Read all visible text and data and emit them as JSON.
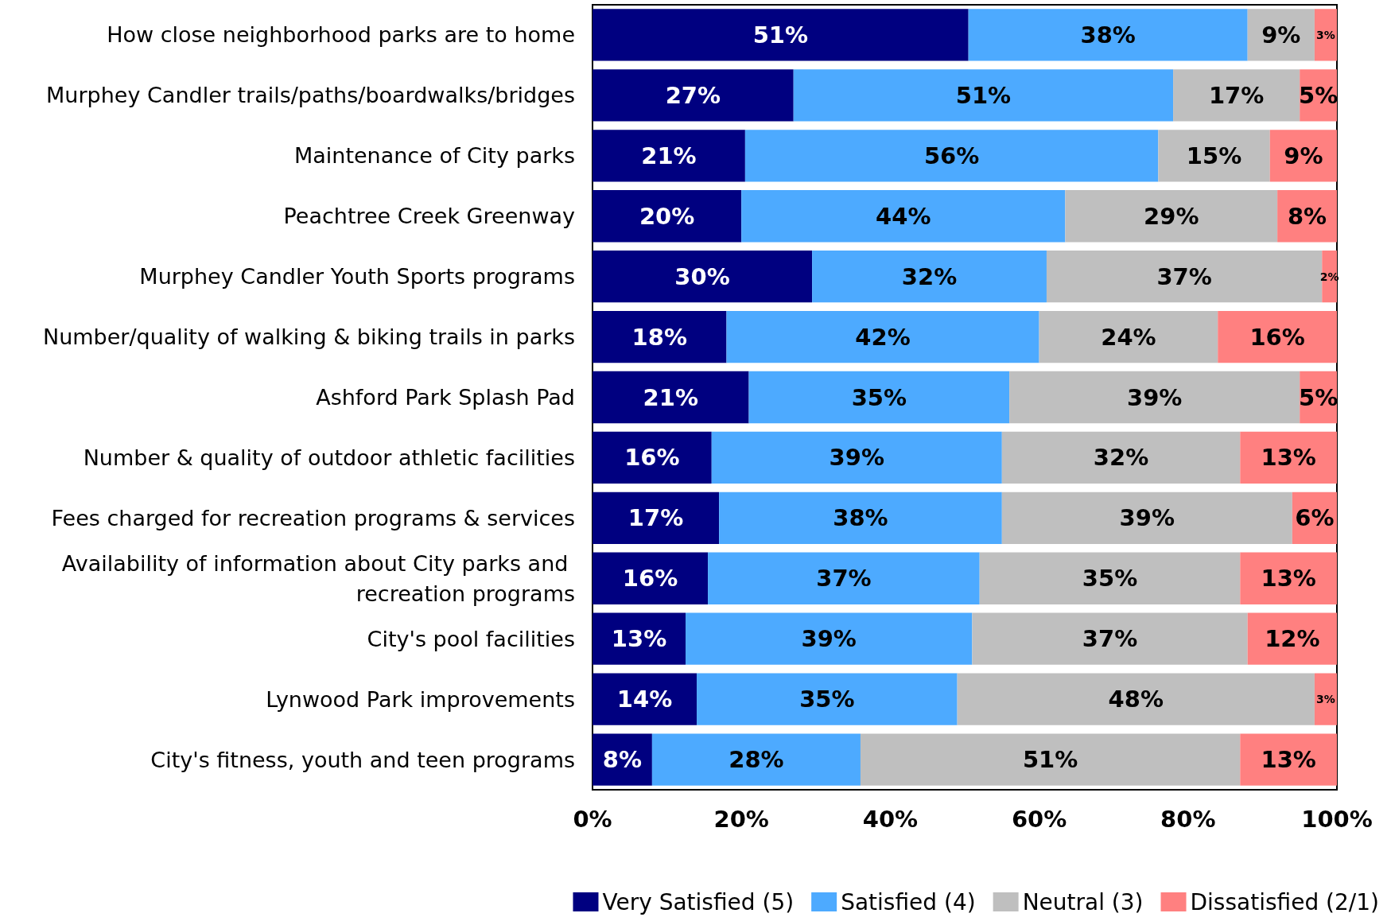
{
  "chart_data": {
    "type": "bar",
    "orientation": "horizontal",
    "stacked": true,
    "categories": [
      "How close neighborhood parks are to home",
      "Murphey Candler trails/paths/boardwalks/bridges",
      "Maintenance of City parks",
      "Peachtree Creek Greenway",
      "Murphey Candler Youth Sports programs",
      "Number/quality of walking & biking trails in parks",
      "Ashford Park Splash Pad",
      "Number & quality of outdoor athletic facilities",
      "Fees charged for recreation programs & services",
      "Availability of information about City parks and recreation programs",
      "City's pool facilities",
      "Lynwood Park improvements",
      "City's fitness, youth and teen programs"
    ],
    "series": [
      {
        "name": "Very Satisfied (5)",
        "color": "#000080",
        "values": [
          50.5,
          27,
          20.5,
          20,
          29.5,
          18,
          21,
          16,
          17,
          15.5,
          12.5,
          14,
          8
        ],
        "value_labels": [
          "51%",
          "27%",
          "21%",
          "20%",
          "30%",
          "18%",
          "21%",
          "16%",
          "17%",
          "16%",
          "13%",
          "14%",
          "8%"
        ]
      },
      {
        "name": "Satisfied (4)",
        "color": "#4daaff",
        "values": [
          37.5,
          51,
          55.5,
          43.5,
          31.5,
          42,
          35,
          39,
          38,
          36.5,
          38.5,
          35,
          28
        ],
        "value_labels": [
          "38%",
          "51%",
          "56%",
          "44%",
          "32%",
          "42%",
          "35%",
          "39%",
          "38%",
          "37%",
          "39%",
          "35%",
          "28%"
        ]
      },
      {
        "name": "Neutral (3)",
        "color": "#bfbfbf",
        "values": [
          9,
          17,
          15,
          28.5,
          37,
          24,
          39,
          32,
          39,
          35,
          37,
          48,
          51
        ],
        "value_labels": [
          "9%",
          "17%",
          "15%",
          "29%",
          "37%",
          "24%",
          "39%",
          "32%",
          "39%",
          "35%",
          "37%",
          "48%",
          "51%"
        ]
      },
      {
        "name": "Dissatisfied (2/1)",
        "color": "#ff8080",
        "values": [
          3,
          5,
          9,
          8,
          2,
          16,
          5,
          13,
          6,
          13,
          12,
          3,
          13
        ],
        "value_labels": [
          "3%",
          "5%",
          "9%",
          "8%",
          "2%",
          "16%",
          "5%",
          "13%",
          "6%",
          "13%",
          "12%",
          "3%",
          "13%"
        ]
      }
    ],
    "xlim": [
      0,
      100
    ],
    "xticks": [
      {
        "value": 0,
        "label": "0%"
      },
      {
        "value": 20,
        "label": "20%"
      },
      {
        "value": 40,
        "label": "40%"
      },
      {
        "value": 60,
        "label": "60%"
      },
      {
        "value": 80,
        "label": "80%"
      },
      {
        "value": 100,
        "label": "100%"
      }
    ],
    "grid": false,
    "legend": "bottom right"
  }
}
